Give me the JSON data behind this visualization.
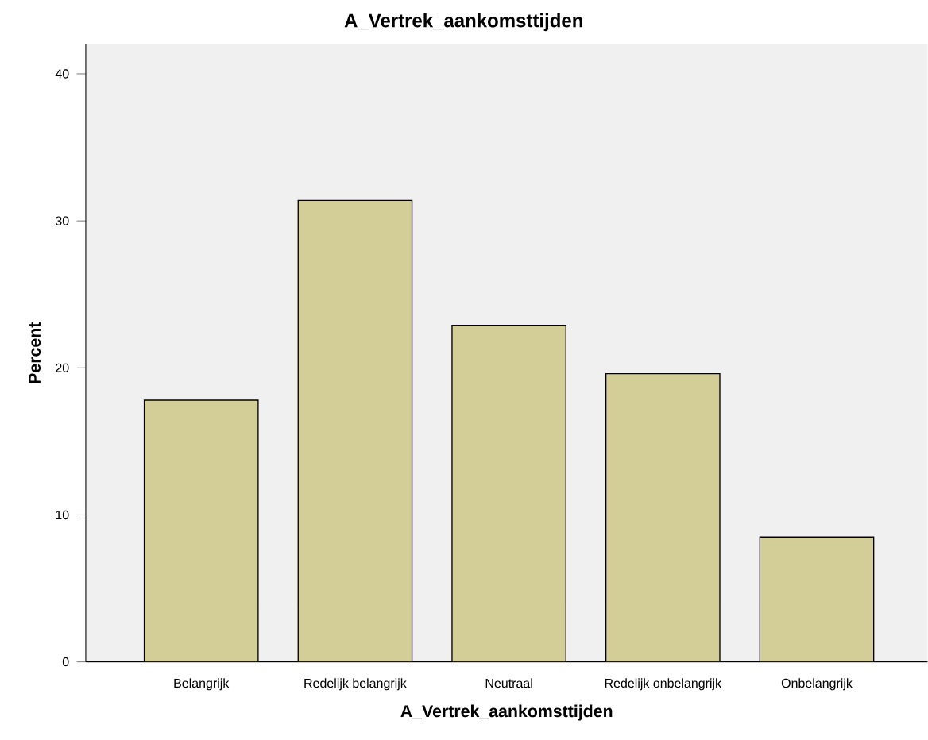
{
  "chart_data": {
    "type": "bar",
    "title": "A_Vertrek_aankomsttijden",
    "xlabel": "A_Vertrek_aankomsttijden",
    "ylabel": "Percent",
    "categories": [
      "Belangrijk",
      "Redelijk belangrijk",
      "Neutraal",
      "Redelijk onbelangrijk",
      "Onbelangrijk"
    ],
    "values": [
      17.8,
      31.4,
      22.9,
      19.6,
      8.5
    ],
    "color": "#d3ce97",
    "ylim": [
      0,
      42
    ],
    "yticks": [
      0,
      10,
      20,
      30,
      40
    ],
    "grid": false
  }
}
